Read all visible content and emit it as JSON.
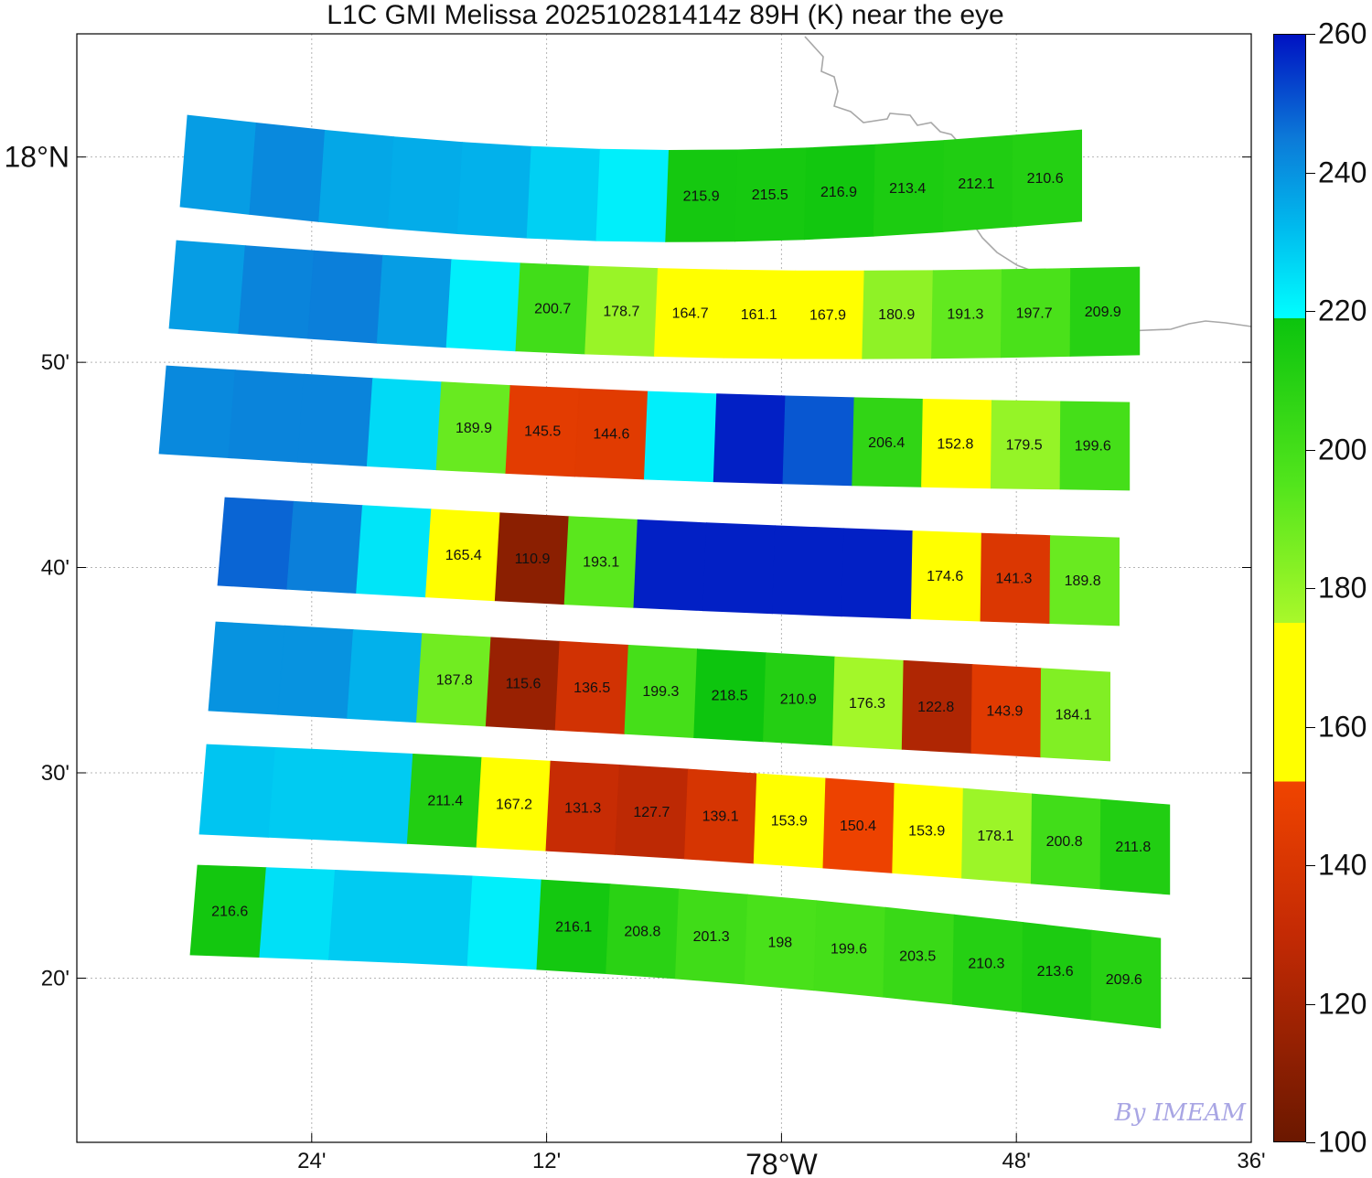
{
  "title": "L1C GMI Melissa 202510281414z 89H (K) near the eye",
  "watermark": "By IMEAM",
  "axes": {
    "x_ticks": [
      {
        "label": "24'",
        "lon": -78.4
      },
      {
        "label": "12'",
        "lon": -78.2
      },
      {
        "label": "78°W",
        "lon": -78.0,
        "major": true
      },
      {
        "label": "48'",
        "lon": -77.8
      },
      {
        "label": "36'",
        "lon": -77.6
      }
    ],
    "y_ticks": [
      {
        "label": "18°N",
        "lat": 18.0,
        "major": true
      },
      {
        "label": "50'",
        "lat": 17.8333
      },
      {
        "label": "40'",
        "lat": 17.6667
      },
      {
        "label": "30'",
        "lat": 17.5
      },
      {
        "label": "20'",
        "lat": 17.3333
      }
    ],
    "xlim": [
      -78.6,
      -77.6
    ],
    "ylim": [
      17.2,
      18.1
    ]
  },
  "colorbar": {
    "range": [
      100,
      260
    ],
    "tick_labels": [
      "100",
      "120",
      "140",
      "160",
      "180",
      "200",
      "220",
      "240",
      "260"
    ],
    "tick_values": [
      100,
      120,
      140,
      160,
      180,
      200,
      220,
      240,
      260
    ],
    "colors": {
      "c100": "#6b1800",
      "c130": "#c42a04",
      "c150": "#f04400",
      "c152": "#ffff00",
      "c173": "#ffff00",
      "c175": "#a9f82a",
      "c195": "#52e51c",
      "c218": "#0cc40e",
      "c219": "#00ffff",
      "c232": "#00bbee",
      "c245": "#0c7ad8",
      "c260": "#0012c2"
    }
  },
  "chart_data": {
    "type": "heatmap",
    "title": "L1C GMI Melissa 202510281414z 89H (K) near the eye",
    "value_units": "K",
    "note": "",
    "rows": [
      {
        "cells": [
          238,
          242,
          236,
          235,
          234,
          228,
          222,
          215.9,
          215.5,
          216.9,
          213.4,
          212.1,
          210.6
        ],
        "labels": [
          null,
          null,
          null,
          null,
          null,
          null,
          null,
          "215.9",
          "215.5",
          "216.9",
          "213.4",
          "212.1",
          "210.6"
        ]
      },
      {
        "cells": [
          238,
          243,
          244,
          238,
          222,
          200.7,
          178.7,
          164.7,
          161.1,
          167.9,
          180.9,
          191.3,
          197.7,
          209.9
        ],
        "labels": [
          null,
          null,
          null,
          null,
          null,
          "200.7",
          "178.7",
          "164.7",
          "161.1",
          "167.9",
          "180.9",
          "191.3",
          "197.7",
          "209.9"
        ]
      },
      {
        "cells": [
          242,
          243,
          243,
          226,
          189.9,
          145.5,
          144.6,
          222,
          258,
          250,
          206.4,
          152.8,
          179.5,
          199.6
        ],
        "labels": [
          null,
          null,
          null,
          null,
          "189.9",
          "145.5",
          "144.6",
          null,
          null,
          null,
          "206.4",
          "152.8",
          "179.5",
          "199.6"
        ]
      },
      {
        "cells": [
          248,
          244,
          224,
          165.4,
          110.9,
          193.1,
          258,
          258,
          258,
          258,
          174.6,
          141.3,
          189.8
        ],
        "labels": [
          null,
          null,
          null,
          "165.4",
          "110.9",
          "193.1",
          null,
          null,
          null,
          null,
          "174.6",
          "141.3",
          "189.8"
        ]
      },
      {
        "cells": [
          240,
          240,
          234,
          187.8,
          115.6,
          136.5,
          199.3,
          218.5,
          210.9,
          176.3,
          122.8,
          143.9,
          184.1
        ],
        "labels": [
          null,
          null,
          null,
          "187.8",
          "115.6",
          "136.5",
          "199.3",
          "218.5",
          "210.9",
          "176.3",
          "122.8",
          "143.9",
          "184.1"
        ]
      },
      {
        "cells": [
          230,
          229,
          229,
          211.4,
          167.2,
          131.3,
          127.7,
          139.1,
          153.9,
          150.4,
          153.9,
          178.1,
          200.8,
          211.8
        ],
        "labels": [
          null,
          null,
          null,
          "211.4",
          "167.2",
          "131.3",
          "127.7",
          "139.1",
          "153.9",
          "150.4",
          "153.9",
          "178.1",
          "200.8",
          "211.8"
        ]
      },
      {
        "cells": [
          216.6,
          225,
          229,
          229,
          222,
          216.1,
          208.8,
          201.3,
          198,
          199.6,
          203.5,
          210.3,
          213.6,
          209.6
        ],
        "labels": [
          "216.6",
          null,
          null,
          null,
          null,
          "216.1",
          "208.8",
          "201.3",
          "198",
          "199.6",
          "203.5",
          "210.3",
          "213.6",
          "209.6"
        ]
      }
    ]
  }
}
